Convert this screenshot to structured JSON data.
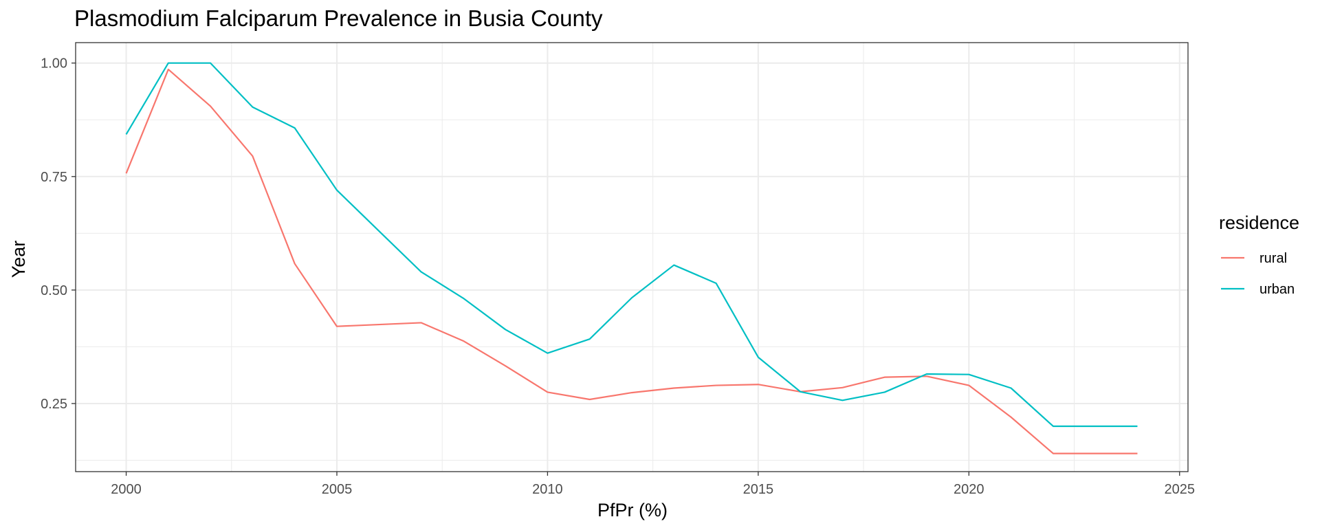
{
  "chart_data": {
    "type": "line",
    "title": "Plasmodium Falciparum Prevalence in Busia County",
    "xlabel": "PfPr (%)",
    "ylabel": "Year",
    "xlim": [
      1998.8,
      2025.2
    ],
    "ylim": [
      0.1,
      1.045
    ],
    "x_ticks": [
      2000,
      2005,
      2010,
      2015,
      2020,
      2025
    ],
    "x_tick_labels": [
      "2000",
      "2005",
      "2010",
      "2015",
      "2020",
      "2025"
    ],
    "y_ticks": [
      0.25,
      0.5,
      0.75,
      1.0
    ],
    "y_tick_labels": [
      "0.25",
      "0.50",
      "0.75",
      "1.00"
    ],
    "grid": true,
    "legend": {
      "title": "residence",
      "position": "right"
    },
    "x": [
      2000,
      2001,
      2002,
      2003,
      2004,
      2005,
      2006,
      2007,
      2008,
      2009,
      2010,
      2011,
      2012,
      2013,
      2014,
      2015,
      2016,
      2017,
      2018,
      2019,
      2020,
      2021,
      2022,
      2023,
      2024
    ],
    "series": [
      {
        "name": "rural",
        "color": "#F8766D",
        "values": [
          0.757,
          0.986,
          0.905,
          0.795,
          0.558,
          0.42,
          0.424,
          0.428,
          0.388,
          0.333,
          0.275,
          0.259,
          0.274,
          0.284,
          0.29,
          0.292,
          0.276,
          0.285,
          0.308,
          0.31,
          0.29,
          0.22,
          0.14,
          0.14,
          0.14
        ]
      },
      {
        "name": "urban",
        "color": "#00BFC4",
        "values": [
          0.843,
          1.0,
          1.0,
          0.903,
          0.857,
          0.72,
          0.63,
          0.54,
          0.482,
          0.413,
          0.361,
          0.392,
          0.483,
          0.555,
          0.515,
          0.352,
          0.276,
          0.257,
          0.275,
          0.315,
          0.314,
          0.284,
          0.2,
          0.2,
          0.2
        ]
      }
    ]
  }
}
